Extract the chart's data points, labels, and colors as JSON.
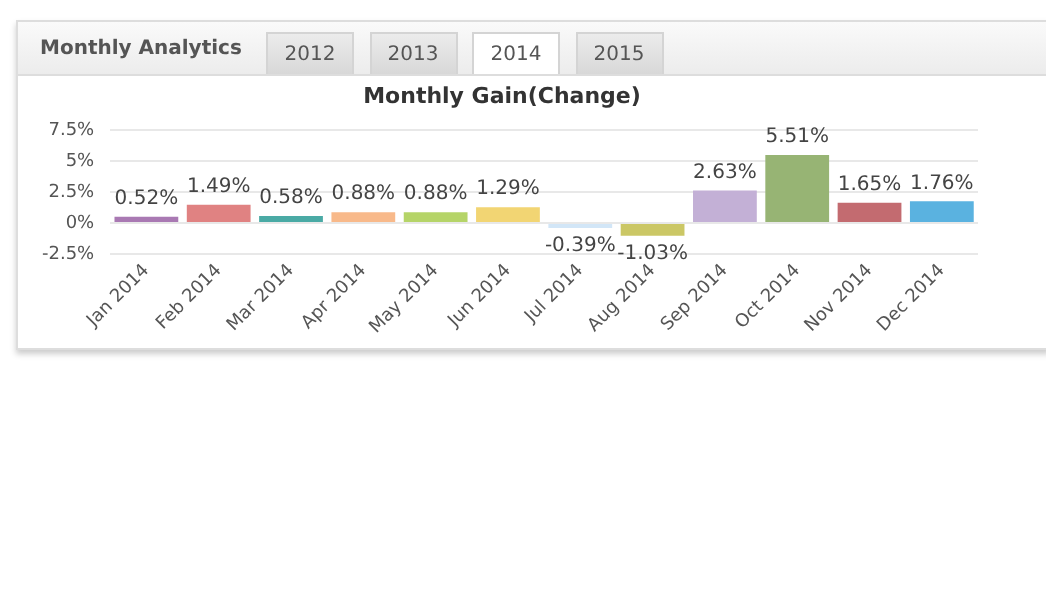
{
  "chart_data": {
    "type": "bar",
    "title": "Monthly Gain(Change)",
    "annotations": [
      "Monthly Analytics",
      "2012",
      "2013",
      "2014",
      "2015"
    ],
    "categories": [
      "Jan 2014",
      "Feb 2014",
      "Mar 2014",
      "Apr 2014",
      "May 2014",
      "Jun 2014",
      "Jul 2014",
      "Aug 2014",
      "Sep 2014",
      "Oct 2014",
      "Nov 2014",
      "Dec 2014"
    ],
    "values": [
      0.52,
      1.49,
      0.58,
      0.88,
      0.88,
      1.29,
      -0.39,
      -1.03,
      2.63,
      5.51,
      1.65,
      1.76
    ],
    "value_labels": [
      "0.52%",
      "1.49%",
      "0.58%",
      "0.88%",
      "0.88%",
      "1.29%",
      "-0.39%",
      "-1.03%",
      "2.63%",
      "5.51%",
      "1.65%",
      "1.76%"
    ],
    "colors": [
      "#a979b3",
      "#e08282",
      "#4aaaa5",
      "#f8b98a",
      "#b5d468",
      "#f2d573",
      "#d2e6f7",
      "#cbc765",
      "#c3b0d6",
      "#97b474",
      "#c36b70",
      "#5ab2e0"
    ],
    "ylim": [
      -2.5,
      7.5
    ],
    "yticks": [
      {
        "value": -2.5,
        "label": "-2.5%"
      },
      {
        "value": 0,
        "label": "0%"
      },
      {
        "value": 2.5,
        "label": "2.5%"
      },
      {
        "value": 5,
        "label": "5%"
      },
      {
        "value": 7.5,
        "label": "7.5%"
      }
    ],
    "grid": "y",
    "legend": false
  }
}
